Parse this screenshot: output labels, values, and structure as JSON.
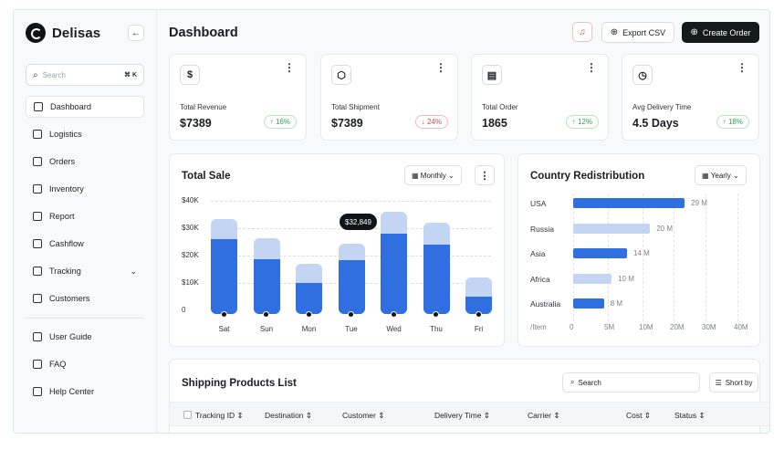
{
  "app": {
    "name": "Delisas"
  },
  "sidebar": {
    "search_placeholder": "Search",
    "shortcut": "⌘ K",
    "items": [
      {
        "label": "Dashboard"
      },
      {
        "label": "Logistics"
      },
      {
        "label": "Orders"
      },
      {
        "label": "Inventory"
      },
      {
        "label": "Report"
      },
      {
        "label": "Cashflow"
      },
      {
        "label": "Tracking"
      },
      {
        "label": "Customers"
      }
    ],
    "footer_items": [
      {
        "label": "User Guide"
      },
      {
        "label": "FAQ"
      },
      {
        "label": "Help Center"
      }
    ]
  },
  "header": {
    "title": "Dashboard",
    "export_label": "Export CSV",
    "create_label": "Create Order"
  },
  "stats": [
    {
      "label": "Total Revenue",
      "value": "$7389",
      "change": "16%",
      "trend": "up",
      "icon": "dollar-icon"
    },
    {
      "label": "Total Shipment",
      "value": "$7389",
      "change": "24%",
      "trend": "down",
      "icon": "box-icon"
    },
    {
      "label": "Total Order",
      "value": "1865",
      "change": "12%",
      "trend": "up",
      "icon": "document-icon"
    },
    {
      "label": "Avg Delivery Time",
      "value": "4.5 Days",
      "change": "18%",
      "trend": "up",
      "icon": "clock-icon"
    }
  ],
  "total_sale": {
    "title": "Total Sale",
    "period": "Monthly",
    "tooltip": "$32,849",
    "y_ticks": [
      "$40K",
      "$30K",
      "$20K",
      "$10K",
      "0"
    ]
  },
  "country_redistribution": {
    "title": "Country Redistribution",
    "period": "Yearly",
    "x_unit": "/Item",
    "x_ticks": [
      "0",
      "5M",
      "10M",
      "20M",
      "30M",
      "40M"
    ]
  },
  "shipping": {
    "title": "Shipping Products List",
    "search_placeholder": "Search",
    "sort_label": "Short by",
    "columns": [
      "Tracking ID",
      "Destination",
      "Customer",
      "Delivery Time",
      "Carrier",
      "Cost",
      "Status"
    ]
  },
  "chart_data": [
    {
      "type": "bar",
      "title": "Total Sale",
      "categories": [
        "Sat",
        "Sun",
        "Mon",
        "Tue",
        "Wed",
        "Thu",
        "Fri"
      ],
      "series": [
        {
          "values": [
            26000,
            18800,
            10000,
            18400,
            28000,
            24000,
            5000
          ]
        },
        {
          "values": [
            33500,
            26500,
            17000,
            24500,
            36000,
            32000,
            12000
          ]
        }
      ],
      "ylim": [
        0,
        40000
      ],
      "yticks": [
        "$40K",
        "$30K",
        "$20K",
        "$10K",
        "0"
      ],
      "colors": {
        "front": "#2f6fe0",
        "back": "#c4d5f4"
      }
    },
    {
      "type": "bar",
      "orientation": "horizontal",
      "title": "Country Redistribution",
      "categories": [
        "USA",
        "Russia",
        "Asia",
        "Africa",
        "Australia"
      ],
      "values": [
        29,
        20,
        14,
        10,
        8
      ],
      "value_labels": [
        "29 M",
        "20 M",
        "14 M",
        "10 M",
        "8 M"
      ],
      "xlabel": "/Item",
      "xticks": [
        "0",
        "5M",
        "10M",
        "20M",
        "30M",
        "40M"
      ],
      "colors": {
        "primary": "#2f6fe0",
        "secondary": "#c4d5f4"
      }
    }
  ]
}
